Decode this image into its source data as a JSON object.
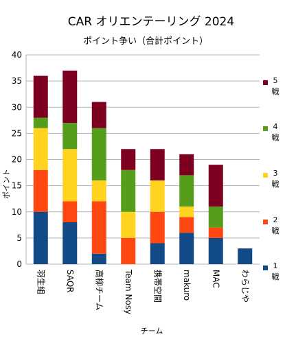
{
  "chart_data": {
    "type": "bar",
    "stacked": true,
    "title": "CAR オリエンテーリング 2024",
    "subtitle": "ポイント争い（合計ポイント）",
    "xlabel": "チーム",
    "ylabel": "ポイント",
    "ylim": [
      0,
      40
    ],
    "yticks": [
      0,
      5,
      10,
      15,
      20,
      25,
      30,
      35,
      40
    ],
    "grid": true,
    "legend_position": "right",
    "categories": [
      "羽生組",
      "SAQR",
      "高柳チーム",
      "Team Nosy",
      "携帯空間",
      "makuro",
      "MAC",
      "わらじや"
    ],
    "series": [
      {
        "name": "1戦",
        "color": "#114a86",
        "values": [
          10,
          8,
          2,
          0,
          4,
          6,
          5,
          3
        ]
      },
      {
        "name": "2戦",
        "color": "#ff4711",
        "values": [
          8,
          4,
          10,
          5,
          6,
          3,
          2,
          0
        ]
      },
      {
        "name": "3戦",
        "color": "#ffd320",
        "values": [
          8,
          10,
          4,
          5,
          6,
          2,
          0,
          0
        ]
      },
      {
        "name": "4戦",
        "color": "#579d1c",
        "values": [
          2,
          5,
          10,
          8,
          0,
          6,
          4,
          0
        ]
      },
      {
        "name": "5戦",
        "color": "#7e0021",
        "values": [
          8,
          10,
          5,
          4,
          6,
          4,
          8,
          0
        ]
      }
    ]
  }
}
